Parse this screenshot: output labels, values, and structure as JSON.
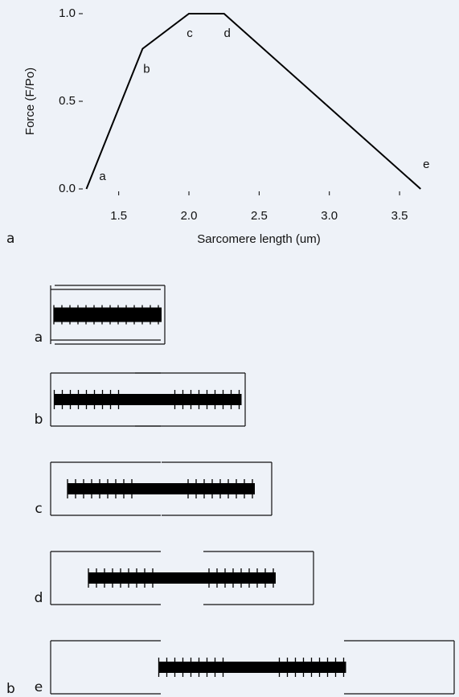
{
  "chart_data": {
    "type": "line",
    "panel_label": "a",
    "xlabel": "Sarcomere length (um)",
    "ylabel": "Force (F/Po)",
    "x": [
      1.27,
      1.67,
      2.0,
      2.25,
      3.65
    ],
    "series": [
      {
        "color": "#000000",
        "values": [
          0,
          0.8,
          1.0,
          1.0,
          0
        ]
      }
    ],
    "point_labels": [
      "a",
      "b",
      "c",
      "d",
      "e"
    ],
    "xlim": [
      1.25,
      3.7
    ],
    "ylim": [
      0,
      1
    ],
    "xticks": [
      1.5,
      {
        "value": 2,
        "label": "2.0"
      },
      2.5,
      {
        "value": 3,
        "label": "3.0"
      },
      3.5
    ],
    "yticks": [
      {
        "value": 0,
        "label": "0.0"
      },
      0.5,
      {
        "value": 1,
        "label": "1.0"
      }
    ],
    "grid": false
  },
  "diagram": {
    "panel_label": "b",
    "rows": [
      "a",
      "b",
      "c",
      "d",
      "e"
    ]
  }
}
